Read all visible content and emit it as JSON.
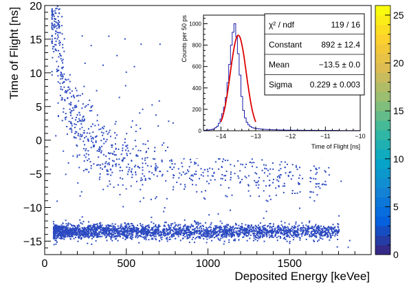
{
  "chart_data": [
    {
      "type": "heatmap",
      "title": "",
      "xlabel": "Deposited Energy [keVee]",
      "ylabel": "Time of Flight [ns]",
      "xlim": [
        0,
        2000
      ],
      "ylim": [
        -17,
        20
      ],
      "xticks": [
        0,
        500,
        1000,
        1500
      ],
      "xtick_labels": [
        "0",
        "500",
        "1000",
        "1500"
      ],
      "yticks": [
        -15,
        -10,
        -5,
        0,
        5,
        10,
        15,
        20
      ],
      "ytick_labels": [
        "−15",
        "−10",
        "−5",
        "0",
        "5",
        "10",
        "15",
        "20"
      ],
      "colorbar": {
        "min": 0,
        "max": 26,
        "ticks": [
          0,
          5,
          10,
          15,
          20,
          25
        ],
        "tick_labels": [
          "0",
          "5",
          "10",
          "15",
          "20",
          "25"
        ],
        "colors": [
          "#352a87",
          "#0363e1",
          "#1485d4",
          "#06a7c6",
          "#38b99e",
          "#92bf73",
          "#d9ba56",
          "#fcce2e",
          "#f9fb0e"
        ]
      },
      "point_color": "#2b49c0",
      "populations": [
        {
          "kind": "prompt-gamma-band",
          "x_range": [
            50,
            1800
          ],
          "y_center": -13.5
        },
        {
          "kind": "neutron-curve",
          "y_max": 20,
          "y_asymptote": -7
        }
      ]
    },
    {
      "type": "bar",
      "title": "",
      "xlabel": "Time of Flight [ns]",
      "ylabel": "Counts per 50 ps",
      "xlim": [
        -14.5,
        -10
      ],
      "ylim": [
        0,
        1080
      ],
      "xticks": [
        -14,
        -13,
        -12,
        -11,
        -10
      ],
      "xtick_labels": [
        "−14",
        "−13",
        "−12",
        "−11",
        "−10"
      ],
      "yticks": [
        0,
        200,
        400,
        600,
        800,
        1000
      ],
      "ytick_labels": [
        "0",
        "200",
        "400",
        "600",
        "800",
        "1000"
      ],
      "bin_width": 0.05,
      "x": [
        -14.45,
        -14.4,
        -14.35,
        -14.3,
        -14.25,
        -14.2,
        -14.15,
        -14.1,
        -14.05,
        -14.0,
        -13.95,
        -13.9,
        -13.85,
        -13.8,
        -13.75,
        -13.7,
        -13.65,
        -13.6,
        -13.55,
        -13.5,
        -13.45,
        -13.4,
        -13.35,
        -13.3,
        -13.25,
        -13.2,
        -13.15,
        -13.1,
        -13.05,
        -13.0,
        -12.95,
        -12.9,
        -12.85,
        -12.8,
        -12.75,
        -12.7,
        -12.65,
        -12.6,
        -12.55,
        -12.5,
        -12.45,
        -12.4,
        -12.35,
        -12.3,
        -12.25,
        -12.2,
        -12.15,
        -12.1,
        -12.05,
        -12.0,
        -11.95,
        -11.9,
        -11.85,
        -11.8,
        -11.75,
        -11.7,
        -11.65,
        -11.6,
        -11.55,
        -11.5,
        -11.45,
        -11.4,
        -11.35,
        -11.3,
        -11.25,
        -11.2,
        -11.15,
        -11.1,
        -11.05,
        -11.0,
        -10.95,
        -10.9,
        -10.85,
        -10.8,
        -10.75,
        -10.7,
        -10.65,
        -10.6,
        -10.55,
        -10.5,
        -10.45,
        -10.4,
        -10.35,
        -10.3,
        -10.25,
        -10.2,
        -10.15,
        -10.1,
        -10.05
      ],
      "values": [
        5,
        6,
        7,
        9,
        12,
        18,
        28,
        42,
        70,
        110,
        160,
        220,
        310,
        450,
        620,
        800,
        920,
        1000,
        880,
        720,
        520,
        320,
        190,
        120,
        80,
        55,
        40,
        30,
        25,
        22,
        20,
        18,
        16,
        14,
        13,
        12,
        11,
        10,
        10,
        9,
        9,
        8,
        8,
        7,
        7,
        7,
        6,
        6,
        6,
        6,
        5,
        5,
        5,
        5,
        5,
        5,
        4,
        4,
        4,
        4,
        4,
        4,
        4,
        4,
        3,
        3,
        3,
        3,
        3,
        3,
        3,
        3,
        3,
        3,
        3,
        3,
        3,
        2,
        2,
        2,
        2,
        2,
        2,
        2,
        2,
        2,
        2,
        2,
        2
      ],
      "fit": {
        "mean": -13.5,
        "sigma": 0.229,
        "constant": 892,
        "color": "#dd0000"
      },
      "stats": {
        "rows": [
          {
            "label": "χ² / ndf",
            "value": "119 / 16"
          },
          {
            "label": "Constant",
            "value": "892 ± 12.4"
          },
          {
            "label": "Mean",
            "value": "−13.5 ± 0.0"
          },
          {
            "label": "Sigma",
            "value": "0.229 ± 0.003"
          }
        ]
      }
    }
  ]
}
